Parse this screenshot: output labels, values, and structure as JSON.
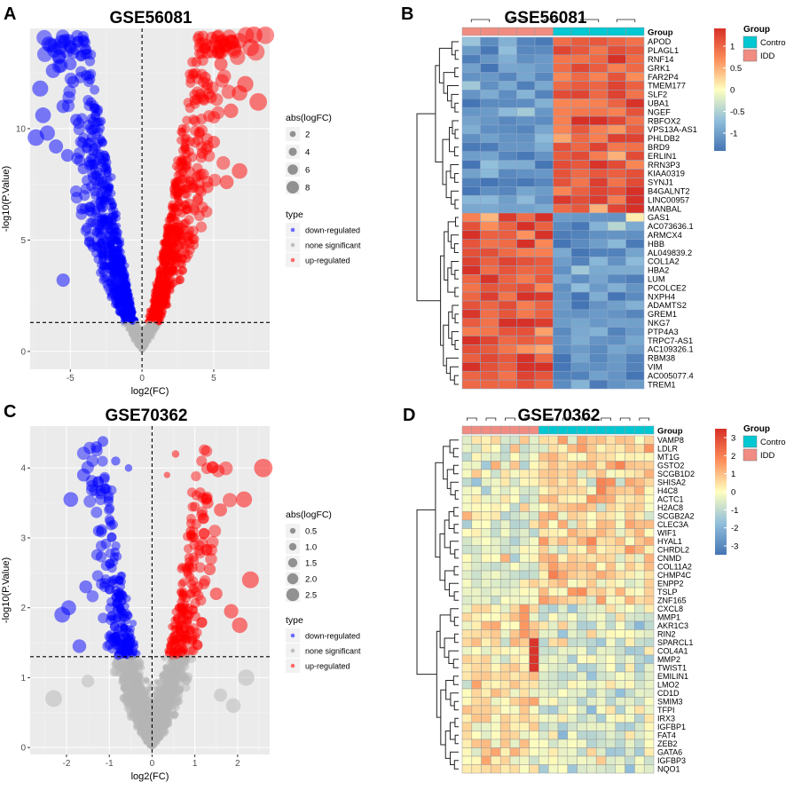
{
  "panels": [
    {
      "letter": "A",
      "title": "GSE56081"
    },
    {
      "letter": "B",
      "title": "GSE56081"
    },
    {
      "letter": "C",
      "title": "GSE70362"
    },
    {
      "letter": "D",
      "title": "GSE70362"
    }
  ],
  "chart_data": [
    {
      "type": "scatter",
      "title": "GSE56081",
      "xlabel": "log2(FC)",
      "ylabel": "-log10(P.Value)",
      "xlim": [
        -7.8,
        8.9
      ],
      "ylim": [
        -0.8,
        14.5
      ],
      "x_ticks": [
        -5,
        0,
        5
      ],
      "y_ticks": [
        0,
        5,
        10
      ],
      "vline": 0,
      "hline": 1.3,
      "size_legend": {
        "title": "abs(logFC)",
        "labels": [
          "2",
          "4",
          "6",
          "8"
        ]
      },
      "type_legend": {
        "title": "type",
        "labels": [
          "down-regulated",
          "none significant",
          "up-regulated"
        ],
        "colors": [
          "#6b6bff",
          "#bfbfbf",
          "#ff6b6b"
        ]
      },
      "series_colors": {
        "down": "#0000ff",
        "none": "#b5b5b5",
        "up": "#ff0000"
      },
      "highlight_points": {
        "down": [
          [
            -6.5,
            13.8
          ],
          [
            -5.8,
            13.2
          ],
          [
            -6.2,
            12.6
          ],
          [
            -7.1,
            11.8
          ],
          [
            -6.9,
            10.6
          ],
          [
            -5.5,
            11.0
          ],
          [
            -4.8,
            12.1
          ],
          [
            -7.4,
            9.6
          ],
          [
            -6.0,
            9.2
          ],
          [
            -4.6,
            10.4
          ],
          [
            -5.2,
            8.8
          ],
          [
            -3.9,
            12.4
          ],
          [
            -4.1,
            8.2
          ],
          [
            -6.6,
            9.8
          ],
          [
            -5.5,
            3.2
          ],
          [
            -4.2,
            6.4
          ],
          [
            -3.5,
            9.6
          ],
          [
            -5.0,
            12.9
          ]
        ],
        "up": [
          [
            7.8,
            14.2
          ],
          [
            6.4,
            13.6
          ],
          [
            5.5,
            12.9
          ],
          [
            7.2,
            12.0
          ],
          [
            8.1,
            11.2
          ],
          [
            6.8,
            11.6
          ],
          [
            4.8,
            11.4
          ],
          [
            4.4,
            12.3
          ],
          [
            6.2,
            10.8
          ],
          [
            6.8,
            8.1
          ],
          [
            5.9,
            7.6
          ],
          [
            5.0,
            9.4
          ],
          [
            4.2,
            8.9
          ]
        ]
      }
    },
    {
      "type": "heatmap",
      "title": "GSE56081",
      "group_label": "Group",
      "groups": [
        "Control",
        "IDD"
      ],
      "group_colors": {
        "Control": "#00c8d2",
        "IDD": "#f08c82"
      },
      "column_groups": [
        "IDD",
        "IDD",
        "IDD",
        "IDD",
        "IDD",
        "Control",
        "Control",
        "Control",
        "Control",
        "Control"
      ],
      "colorbar": {
        "ticks": [
          "1",
          "0.5",
          "0",
          "-0.5",
          "-1"
        ],
        "low": "#4575b4",
        "mid": "#ffffbf",
        "high": "#d73027"
      },
      "rows": [
        "APOD",
        "PLAGL1",
        "RNF14",
        "GRK1",
        "FAR2P4",
        "TMEM177",
        "SLF2",
        "UBA1",
        "NGEF",
        "RBFOX2",
        "VPS13A-AS1",
        "PHLDB2",
        "BRD9",
        "ERLIN1",
        "RRN3P3",
        "KIAA0319",
        "SYNJ1",
        "B4GALNT2",
        "LINC00957",
        "MANBAL",
        "GAS1",
        "AC073636.1",
        "ARMCX4",
        "HBB",
        "AL049839.2",
        "COL1A2",
        "HBA2",
        "LUM",
        "PCOLCE2",
        "NXPH4",
        "ADAMTS2",
        "GREM1",
        "NKG7",
        "PTP4A3",
        "TRPC7-AS1",
        "AC109326.1",
        "RBM38",
        "VIM",
        "AC005077.4",
        "TREM1"
      ]
    },
    {
      "type": "scatter",
      "title": "GSE70362",
      "xlabel": "log2(FC)",
      "ylabel": "-log10(P.Value)",
      "xlim": [
        -2.85,
        2.75
      ],
      "ylim": [
        -0.1,
        4.6
      ],
      "x_ticks": [
        -2,
        -1,
        0,
        1,
        2
      ],
      "y_ticks": [
        0,
        1,
        2,
        3,
        4
      ],
      "vline": 0,
      "hline": 1.3,
      "size_legend": {
        "title": "abs(logFC)",
        "labels": [
          "0.5",
          "1.0",
          "1.5",
          "2.0",
          "2.5"
        ]
      },
      "type_legend": {
        "title": "type",
        "labels": [
          "down-regulated",
          "none significant",
          "up-regulated"
        ],
        "colors": [
          "#6b6bff",
          "#bfbfbf",
          "#ff6b6b"
        ]
      },
      "series_colors": {
        "down": "#0000ff",
        "none": "#b5b5b5",
        "up": "#ff0000"
      },
      "highlight_points": {
        "down": [
          [
            -1.9,
            3.55
          ],
          [
            -1.6,
            3.9
          ],
          [
            -1.3,
            4.3
          ],
          [
            -1.15,
            4.38
          ],
          [
            -0.85,
            4.1
          ],
          [
            -0.55,
            4.0
          ],
          [
            -1.95,
            2.0
          ],
          [
            -1.7,
            1.45
          ],
          [
            -1.55,
            2.3
          ],
          [
            -1.25,
            3.1
          ],
          [
            -2.1,
            1.9
          ]
        ],
        "up": [
          [
            2.6,
            4.0
          ],
          [
            2.15,
            3.55
          ],
          [
            1.6,
            3.4
          ],
          [
            1.3,
            3.5
          ],
          [
            0.55,
            4.2
          ],
          [
            0.35,
            3.9
          ],
          [
            2.3,
            2.4
          ],
          [
            2.05,
            1.75
          ],
          [
            1.5,
            2.2
          ],
          [
            1.35,
            2.55
          ],
          [
            1.85,
            1.95
          ],
          [
            0.9,
            3.1
          ]
        ],
        "none": [
          [
            -2.3,
            0.7
          ],
          [
            -1.5,
            0.95
          ],
          [
            2.2,
            1.0
          ],
          [
            1.9,
            0.6
          ],
          [
            1.6,
            0.75
          ]
        ]
      }
    },
    {
      "type": "heatmap",
      "title": "GSE70362",
      "group_label": "Group",
      "groups": [
        "Control",
        "IDD"
      ],
      "group_colors": {
        "Control": "#00c8d2",
        "IDD": "#f08c82"
      },
      "column_groups": [
        "IDD",
        "IDD",
        "IDD",
        "IDD",
        "IDD",
        "IDD",
        "IDD",
        "IDD",
        "Control",
        "Control",
        "Control",
        "Control",
        "Control",
        "Control",
        "Control",
        "Control",
        "Control",
        "Control",
        "Control",
        "Control"
      ],
      "colorbar": {
        "ticks": [
          "3",
          "2",
          "1",
          "0",
          "-1",
          "-2",
          "-3"
        ],
        "low": "#4575b4",
        "mid": "#ffffbf",
        "high": "#d73027"
      },
      "rows": [
        "VAMP8",
        "LDLR",
        "MT1G",
        "GSTO2",
        "SCGB1D2",
        "SHISA2",
        "H4C8",
        "ACTC1",
        "H2AC8",
        "SCGB2A2",
        "CLEC3A",
        "WIF1",
        "HYAL1",
        "CHRDL2",
        "CNMD",
        "COL11A2",
        "CHMP4C",
        "ENPP2",
        "TSLP",
        "ZNF165",
        "CXCL8",
        "MMP1",
        "AKR1C3",
        "RIN2",
        "SPARCL1",
        "COL4A1",
        "MMP2",
        "TWIST1",
        "EMILIN1",
        "LMO2",
        "CD1D",
        "SMIM3",
        "TFPI",
        "IRX3",
        "IGFBP1",
        "FAT4",
        "ZEB2",
        "GATA6",
        "IGFBP3",
        "NQO1"
      ]
    }
  ]
}
